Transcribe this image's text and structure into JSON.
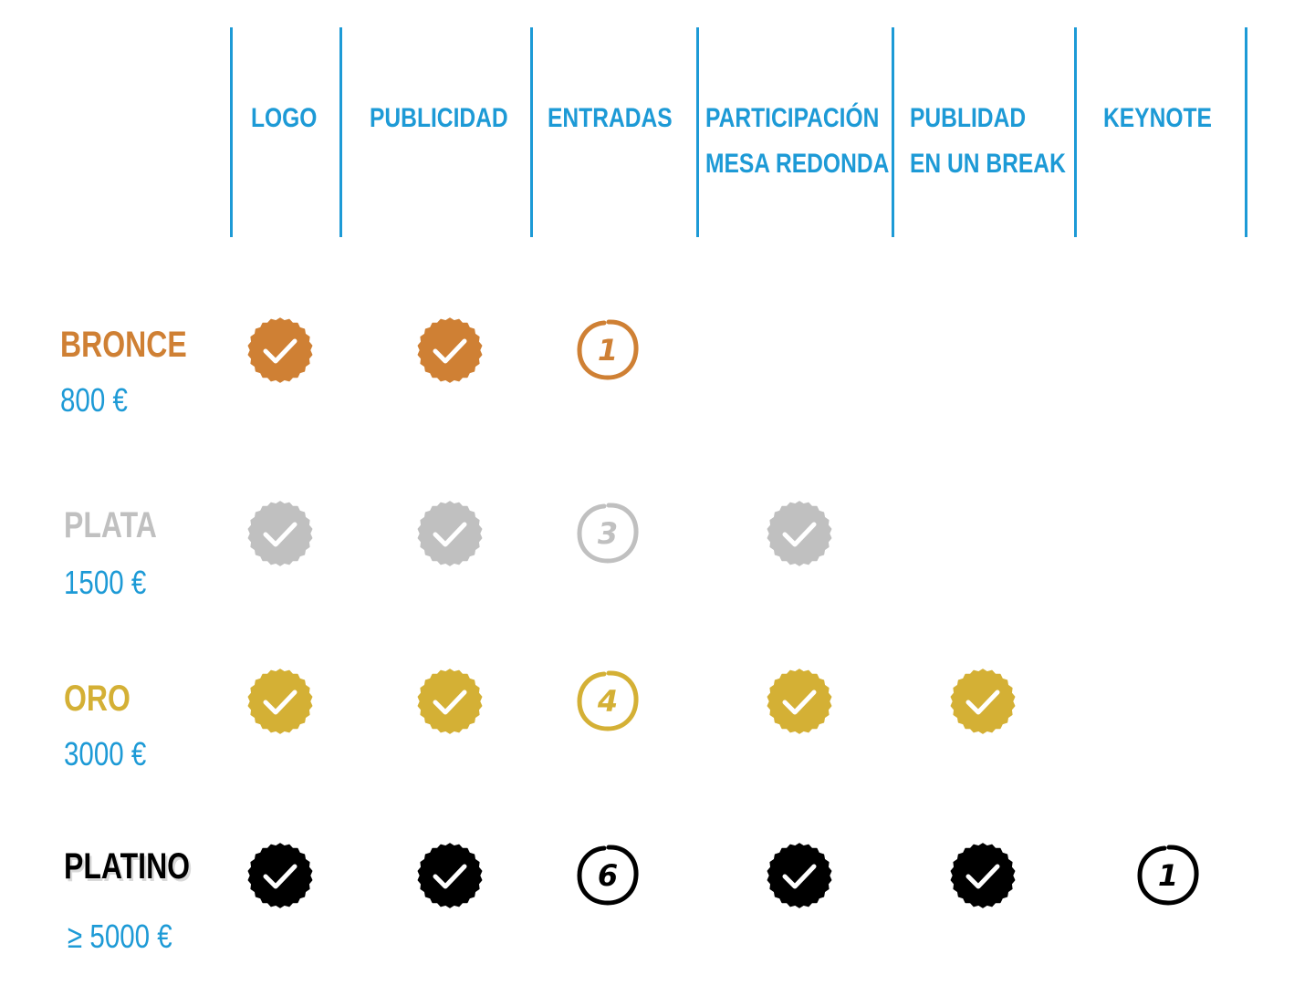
{
  "columns": [
    {
      "id": "logo",
      "lines": [
        "LOGO"
      ]
    },
    {
      "id": "publicidad",
      "lines": [
        "PUBLICIDAD"
      ]
    },
    {
      "id": "entradas",
      "lines": [
        "ENTRADAS"
      ]
    },
    {
      "id": "participacion",
      "lines": [
        "PARTICIPACIÓN",
        "MESA REDONDA"
      ]
    },
    {
      "id": "publidad-break",
      "lines": [
        "PUBLIDAD",
        "EN UN BREAK"
      ]
    },
    {
      "id": "keynote",
      "lines": [
        "KEYNOTE"
      ]
    }
  ],
  "tiers": [
    {
      "id": "bronce",
      "name": "BRONCE",
      "price": "800 €",
      "color": "#cf8034",
      "cells": [
        "check",
        "check",
        "1",
        null,
        null,
        null
      ]
    },
    {
      "id": "plata",
      "name": "PLATA",
      "price": "1500 €",
      "color": "#c0c0c0",
      "cells": [
        "check",
        "check",
        "3",
        "check",
        null,
        null
      ]
    },
    {
      "id": "oro",
      "name": "ORO",
      "price": "3000 €",
      "color": "#d4b035",
      "cells": [
        "check",
        "check",
        "4",
        "check",
        "check",
        null
      ]
    },
    {
      "id": "platino",
      "name": "PLATINO",
      "price": "≥ 5000 €",
      "color": "#000000",
      "cells": [
        "check",
        "check",
        "6",
        "check",
        "check",
        "1"
      ]
    }
  ],
  "colors": {
    "accent": "#1d9ad6"
  },
  "icons": {
    "included": "check-badge-icon",
    "quantity": "circled-number-icon"
  }
}
